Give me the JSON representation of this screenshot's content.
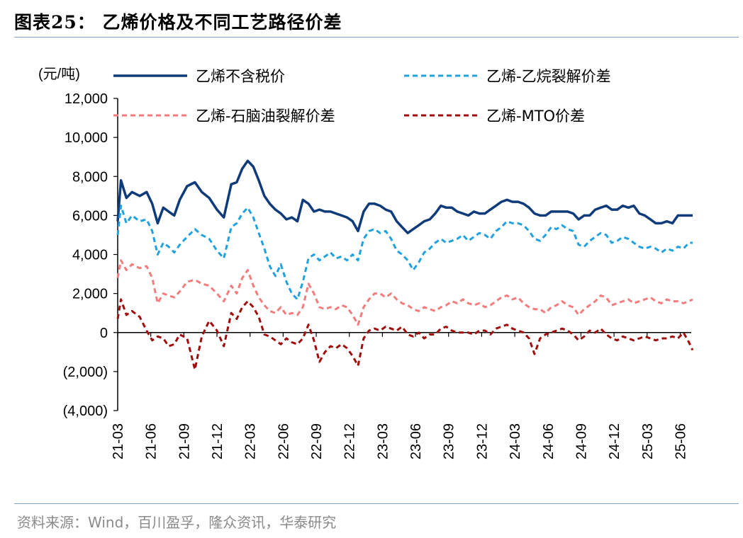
{
  "header": {
    "title": "图表25：  乙烯价格及不同工艺路径价差"
  },
  "footer": {
    "source": "资料来源：Wind，百川盈孚，隆众资讯，华泰研究"
  },
  "colors": {
    "rule": "#7fa3c8"
  },
  "chart_data": {
    "type": "line",
    "ylabel": "(元/吨)",
    "ylim": [
      -4000,
      12000
    ],
    "yticks": [
      -4000,
      -2000,
      0,
      2000,
      4000,
      6000,
      8000,
      10000,
      12000
    ],
    "ytick_labels": [
      "(4,000)",
      "(2,000)",
      "0",
      "2,000",
      "4,000",
      "6,000",
      "8,000",
      "10,000",
      "12,000"
    ],
    "xlim": [
      "2021-03",
      "2025-07"
    ],
    "xticks": [
      "21-03",
      "21-06",
      "21-09",
      "21-12",
      "22-03",
      "22-06",
      "22-09",
      "22-12",
      "23-03",
      "23-06",
      "23-09",
      "23-12",
      "24-03",
      "24-06",
      "24-09",
      "24-12",
      "25-03",
      "25-06"
    ],
    "legend_position": "top",
    "series": [
      {
        "name": "乙烯不含税价",
        "color": "#0f3b7a",
        "style": "solid",
        "x": [
          "2021-03",
          "2021-03-10",
          "2021-03-25",
          "2021-04-10",
          "2021-05-01",
          "2021-05-20",
          "2021-06-05",
          "2021-06-20",
          "2021-07-05",
          "2021-07-20",
          "2021-08-05",
          "2021-08-20",
          "2021-09-10",
          "2021-10-01",
          "2021-10-20",
          "2021-11-10",
          "2021-12-01",
          "2021-12-20",
          "2022-01-10",
          "2022-01-25",
          "2022-02-10",
          "2022-02-25",
          "2022-03-10",
          "2022-03-25",
          "2022-04-10",
          "2022-04-25",
          "2022-05-10",
          "2022-05-25",
          "2022-06-10",
          "2022-06-25",
          "2022-07-10",
          "2022-07-25",
          "2022-08-10",
          "2022-08-25",
          "2022-09-10",
          "2022-09-25",
          "2022-10-10",
          "2022-10-25",
          "2022-11-10",
          "2022-11-25",
          "2022-12-10",
          "2022-12-25",
          "2023-01-10",
          "2023-01-25",
          "2023-02-10",
          "2023-02-25",
          "2023-03-10",
          "2023-03-25",
          "2023-04-10",
          "2023-04-25",
          "2023-05-10",
          "2023-05-25",
          "2023-06-10",
          "2023-06-25",
          "2023-07-10",
          "2023-07-25",
          "2023-08-10",
          "2023-08-25",
          "2023-09-10",
          "2023-09-25",
          "2023-10-10",
          "2023-10-25",
          "2023-11-10",
          "2023-11-25",
          "2023-12-10",
          "2023-12-25",
          "2024-01-10",
          "2024-01-25",
          "2024-02-10",
          "2024-02-25",
          "2024-03-10",
          "2024-03-25",
          "2024-04-10",
          "2024-04-25",
          "2024-05-10",
          "2024-05-25",
          "2024-06-10",
          "2024-06-25",
          "2024-07-10",
          "2024-07-25",
          "2024-08-10",
          "2024-08-25",
          "2024-09-10",
          "2024-09-25",
          "2024-10-10",
          "2024-10-25",
          "2024-11-10",
          "2024-11-25",
          "2024-12-10",
          "2024-12-25",
          "2025-01-10",
          "2025-01-25",
          "2025-02-10",
          "2025-02-25",
          "2025-03-10",
          "2025-03-25",
          "2025-04-10",
          "2025-04-25",
          "2025-05-10",
          "2025-05-25",
          "2025-06-10",
          "2025-06-25",
          "2025-07-05"
        ],
        "values": [
          5700,
          7800,
          6900,
          7200,
          7000,
          7200,
          6600,
          5600,
          6400,
          6200,
          6000,
          6800,
          7500,
          7700,
          7200,
          6900,
          6300,
          5900,
          7600,
          7700,
          8400,
          8800,
          8500,
          7800,
          7000,
          6600,
          6300,
          6100,
          5800,
          5900,
          5700,
          6800,
          6600,
          6200,
          6300,
          6200,
          6200,
          6100,
          6000,
          5900,
          5700,
          5200,
          6200,
          6600,
          6600,
          6500,
          6300,
          6200,
          5700,
          5400,
          5100,
          5300,
          5500,
          5700,
          5800,
          6100,
          6500,
          6400,
          6400,
          6200,
          6100,
          6000,
          6200,
          6100,
          6100,
          6300,
          6500,
          6700,
          6800,
          6700,
          6700,
          6600,
          6400,
          6100,
          6000,
          6000,
          6200,
          6200,
          6200,
          6200,
          6100,
          5800,
          6000,
          6000,
          6300,
          6400,
          6500,
          6300,
          6300,
          6500,
          6400,
          6500,
          6100,
          6000,
          5800,
          5600,
          5600,
          5700,
          5600,
          6000,
          6000,
          6000,
          6000
        ]
      },
      {
        "name": "乙烯-乙烷裂解价差",
        "color": "#1fa2de",
        "style": "dashed",
        "x": [
          "2021-03",
          "2021-03-10",
          "2021-03-25",
          "2021-04-10",
          "2021-05-01",
          "2021-05-20",
          "2021-06-05",
          "2021-06-20",
          "2021-07-05",
          "2021-07-20",
          "2021-08-05",
          "2021-08-20",
          "2021-09-10",
          "2021-10-01",
          "2021-10-20",
          "2021-11-10",
          "2021-12-01",
          "2021-12-20",
          "2022-01-10",
          "2022-01-25",
          "2022-02-10",
          "2022-02-25",
          "2022-03-10",
          "2022-03-25",
          "2022-04-10",
          "2022-04-25",
          "2022-05-10",
          "2022-05-25",
          "2022-06-10",
          "2022-06-25",
          "2022-07-10",
          "2022-07-25",
          "2022-08-10",
          "2022-08-25",
          "2022-09-10",
          "2022-09-25",
          "2022-10-10",
          "2022-10-25",
          "2022-11-10",
          "2022-11-25",
          "2022-12-10",
          "2022-12-25",
          "2023-01-10",
          "2023-01-25",
          "2023-02-10",
          "2023-02-25",
          "2023-03-10",
          "2023-03-25",
          "2023-04-10",
          "2023-04-25",
          "2023-05-10",
          "2023-05-25",
          "2023-06-10",
          "2023-06-25",
          "2023-07-10",
          "2023-07-25",
          "2023-08-10",
          "2023-08-25",
          "2023-09-10",
          "2023-09-25",
          "2023-10-10",
          "2023-10-25",
          "2023-11-10",
          "2023-11-25",
          "2023-12-10",
          "2023-12-25",
          "2024-01-10",
          "2024-01-25",
          "2024-02-10",
          "2024-02-25",
          "2024-03-10",
          "2024-03-25",
          "2024-04-10",
          "2024-04-25",
          "2024-05-10",
          "2024-05-25",
          "2024-06-10",
          "2024-06-25",
          "2024-07-10",
          "2024-07-25",
          "2024-08-10",
          "2024-08-25",
          "2024-09-10",
          "2024-09-25",
          "2024-10-10",
          "2024-10-25",
          "2024-11-10",
          "2024-11-25",
          "2024-12-10",
          "2024-12-25",
          "2025-01-10",
          "2025-01-25",
          "2025-02-10",
          "2025-02-25",
          "2025-03-10",
          "2025-03-25",
          "2025-04-10",
          "2025-04-25",
          "2025-05-10",
          "2025-05-25",
          "2025-06-10",
          "2025-06-25",
          "2025-07-05"
        ],
        "values": [
          5000,
          6500,
          5600,
          6000,
          5700,
          5800,
          5200,
          4000,
          4600,
          4400,
          4100,
          4500,
          4900,
          5300,
          5000,
          4800,
          4200,
          3800,
          5400,
          5600,
          6100,
          6400,
          5900,
          5100,
          4300,
          3400,
          2900,
          3500,
          2600,
          2000,
          1700,
          2600,
          3800,
          4000,
          3700,
          3900,
          4100,
          3800,
          3900,
          3700,
          4000,
          3700,
          4800,
          5200,
          5300,
          5100,
          5200,
          4800,
          4200,
          4000,
          3700,
          3200,
          3600,
          4100,
          4300,
          4600,
          4800,
          4600,
          4700,
          4800,
          5000,
          4700,
          4900,
          5100,
          5000,
          4800,
          5200,
          5400,
          5700,
          5600,
          5600,
          5500,
          5200,
          4800,
          4700,
          5000,
          5400,
          5300,
          5500,
          5300,
          5200,
          4500,
          4400,
          4700,
          4900,
          5100,
          5000,
          4600,
          4700,
          4900,
          4800,
          4600,
          4400,
          4300,
          4400,
          4300,
          4100,
          4300,
          4200,
          4400,
          4300,
          4600,
          4600
        ]
      },
      {
        "name": "乙烯-石脑油裂解价差",
        "color": "#f47c7c",
        "style": "dashed",
        "x": [
          "2021-03",
          "2021-03-10",
          "2021-03-25",
          "2021-04-10",
          "2021-05-01",
          "2021-05-20",
          "2021-06-05",
          "2021-06-20",
          "2021-07-05",
          "2021-07-20",
          "2021-08-05",
          "2021-08-20",
          "2021-09-10",
          "2021-10-01",
          "2021-10-20",
          "2021-11-10",
          "2021-12-01",
          "2021-12-20",
          "2022-01-10",
          "2022-01-25",
          "2022-02-10",
          "2022-02-25",
          "2022-03-10",
          "2022-03-25",
          "2022-04-10",
          "2022-04-25",
          "2022-05-10",
          "2022-05-25",
          "2022-06-10",
          "2022-06-25",
          "2022-07-10",
          "2022-07-25",
          "2022-08-10",
          "2022-08-25",
          "2022-09-10",
          "2022-09-25",
          "2022-10-10",
          "2022-10-25",
          "2022-11-10",
          "2022-11-25",
          "2022-12-10",
          "2022-12-25",
          "2023-01-10",
          "2023-01-25",
          "2023-02-10",
          "2023-02-25",
          "2023-03-10",
          "2023-03-25",
          "2023-04-10",
          "2023-04-25",
          "2023-05-10",
          "2023-05-25",
          "2023-06-10",
          "2023-06-25",
          "2023-07-10",
          "2023-07-25",
          "2023-08-10",
          "2023-08-25",
          "2023-09-10",
          "2023-09-25",
          "2023-10-10",
          "2023-10-25",
          "2023-11-10",
          "2023-11-25",
          "2023-12-10",
          "2023-12-25",
          "2024-01-10",
          "2024-01-25",
          "2024-02-10",
          "2024-02-25",
          "2024-03-10",
          "2024-03-25",
          "2024-04-10",
          "2024-04-25",
          "2024-05-10",
          "2024-05-25",
          "2024-06-10",
          "2024-06-25",
          "2024-07-10",
          "2024-07-25",
          "2024-08-10",
          "2024-08-25",
          "2024-09-10",
          "2024-09-25",
          "2024-10-10",
          "2024-10-25",
          "2024-11-10",
          "2024-11-25",
          "2024-12-10",
          "2024-12-25",
          "2025-01-10",
          "2025-01-25",
          "2025-02-10",
          "2025-02-25",
          "2025-03-10",
          "2025-03-25",
          "2025-04-10",
          "2025-04-25",
          "2025-05-10",
          "2025-05-25",
          "2025-06-10",
          "2025-06-25",
          "2025-07-05"
        ],
        "values": [
          2800,
          3700,
          3200,
          3500,
          3300,
          3400,
          2800,
          1500,
          2000,
          1900,
          1800,
          2100,
          2600,
          2700,
          2500,
          2400,
          2000,
          1600,
          2400,
          2000,
          2800,
          3200,
          2400,
          1800,
          1400,
          1100,
          1000,
          1300,
          900,
          1000,
          900,
          1300,
          2500,
          2000,
          1300,
          1200,
          1300,
          1200,
          1400,
          1300,
          900,
          400,
          1300,
          1700,
          2000,
          2000,
          1800,
          2000,
          1700,
          1500,
          1400,
          1200,
          1100,
          1300,
          1200,
          1100,
          1300,
          1400,
          1600,
          1500,
          1700,
          1500,
          1400,
          1500,
          1300,
          1400,
          1600,
          1800,
          1900,
          1700,
          1800,
          1500,
          1300,
          1200,
          1200,
          1000,
          1300,
          1400,
          1600,
          1400,
          1300,
          900,
          1200,
          1400,
          1600,
          1900,
          1800,
          1400,
          1500,
          1600,
          1700,
          1500,
          1600,
          1700,
          1800,
          1600,
          1500,
          1700,
          1600,
          1600,
          1500,
          1600,
          1700
        ]
      },
      {
        "name": "乙烯-MTO价差",
        "color": "#a10d0d",
        "style": "dashed",
        "x": [
          "2021-03",
          "2021-03-10",
          "2021-03-25",
          "2021-04-10",
          "2021-05-01",
          "2021-05-20",
          "2021-06-05",
          "2021-06-20",
          "2021-07-05",
          "2021-07-20",
          "2021-08-05",
          "2021-08-20",
          "2021-09-10",
          "2021-10-01",
          "2021-10-20",
          "2021-11-10",
          "2021-12-01",
          "2021-12-20",
          "2022-01-10",
          "2022-01-25",
          "2022-02-10",
          "2022-02-25",
          "2022-03-10",
          "2022-03-25",
          "2022-04-10",
          "2022-04-25",
          "2022-05-10",
          "2022-05-25",
          "2022-06-10",
          "2022-06-25",
          "2022-07-10",
          "2022-07-25",
          "2022-08-10",
          "2022-08-25",
          "2022-09-10",
          "2022-09-25",
          "2022-10-10",
          "2022-10-25",
          "2022-11-10",
          "2022-11-25",
          "2022-12-10",
          "2022-12-25",
          "2023-01-10",
          "2023-01-25",
          "2023-02-10",
          "2023-02-25",
          "2023-03-10",
          "2023-03-25",
          "2023-04-10",
          "2023-04-25",
          "2023-05-10",
          "2023-05-25",
          "2023-06-10",
          "2023-06-25",
          "2023-07-10",
          "2023-07-25",
          "2023-08-10",
          "2023-08-25",
          "2023-09-10",
          "2023-09-25",
          "2023-10-10",
          "2023-10-25",
          "2023-11-10",
          "2023-11-25",
          "2023-12-10",
          "2023-12-25",
          "2024-01-10",
          "2024-01-25",
          "2024-02-10",
          "2024-02-25",
          "2024-03-10",
          "2024-03-25",
          "2024-04-10",
          "2024-04-25",
          "2024-05-10",
          "2024-05-25",
          "2024-06-10",
          "2024-06-25",
          "2024-07-10",
          "2024-07-25",
          "2024-08-10",
          "2024-08-25",
          "2024-09-10",
          "2024-09-25",
          "2024-10-10",
          "2024-10-25",
          "2024-11-10",
          "2024-11-25",
          "2024-12-10",
          "2024-12-25",
          "2025-01-10",
          "2025-01-25",
          "2025-02-10",
          "2025-02-25",
          "2025-03-10",
          "2025-03-25",
          "2025-04-10",
          "2025-04-25",
          "2025-05-10",
          "2025-05-25",
          "2025-06-10",
          "2025-06-25",
          "2025-07-05"
        ],
        "values": [
          700,
          1700,
          900,
          1100,
          800,
          100,
          -400,
          -200,
          -300,
          -700,
          -600,
          -100,
          -300,
          -1900,
          -200,
          600,
          100,
          -700,
          1000,
          700,
          1300,
          1600,
          1300,
          800,
          -100,
          -200,
          -400,
          -600,
          -300,
          -500,
          -600,
          -300,
          400,
          -400,
          -1500,
          -1000,
          -700,
          -800,
          -600,
          -800,
          -1200,
          -1700,
          -300,
          100,
          200,
          100,
          300,
          200,
          100,
          300,
          -100,
          -200,
          0,
          -300,
          -100,
          -100,
          200,
          300,
          100,
          0,
          0,
          0,
          -100,
          100,
          100,
          -100,
          200,
          300,
          400,
          200,
          100,
          0,
          -300,
          -1100,
          -300,
          -100,
          0,
          100,
          200,
          100,
          -100,
          -400,
          -200,
          100,
          0,
          200,
          -100,
          -300,
          -400,
          -200,
          -300,
          -400,
          -300,
          -200,
          -300,
          -400,
          -300,
          -300,
          -200,
          -300,
          0,
          -500,
          -900
        ]
      }
    ]
  }
}
